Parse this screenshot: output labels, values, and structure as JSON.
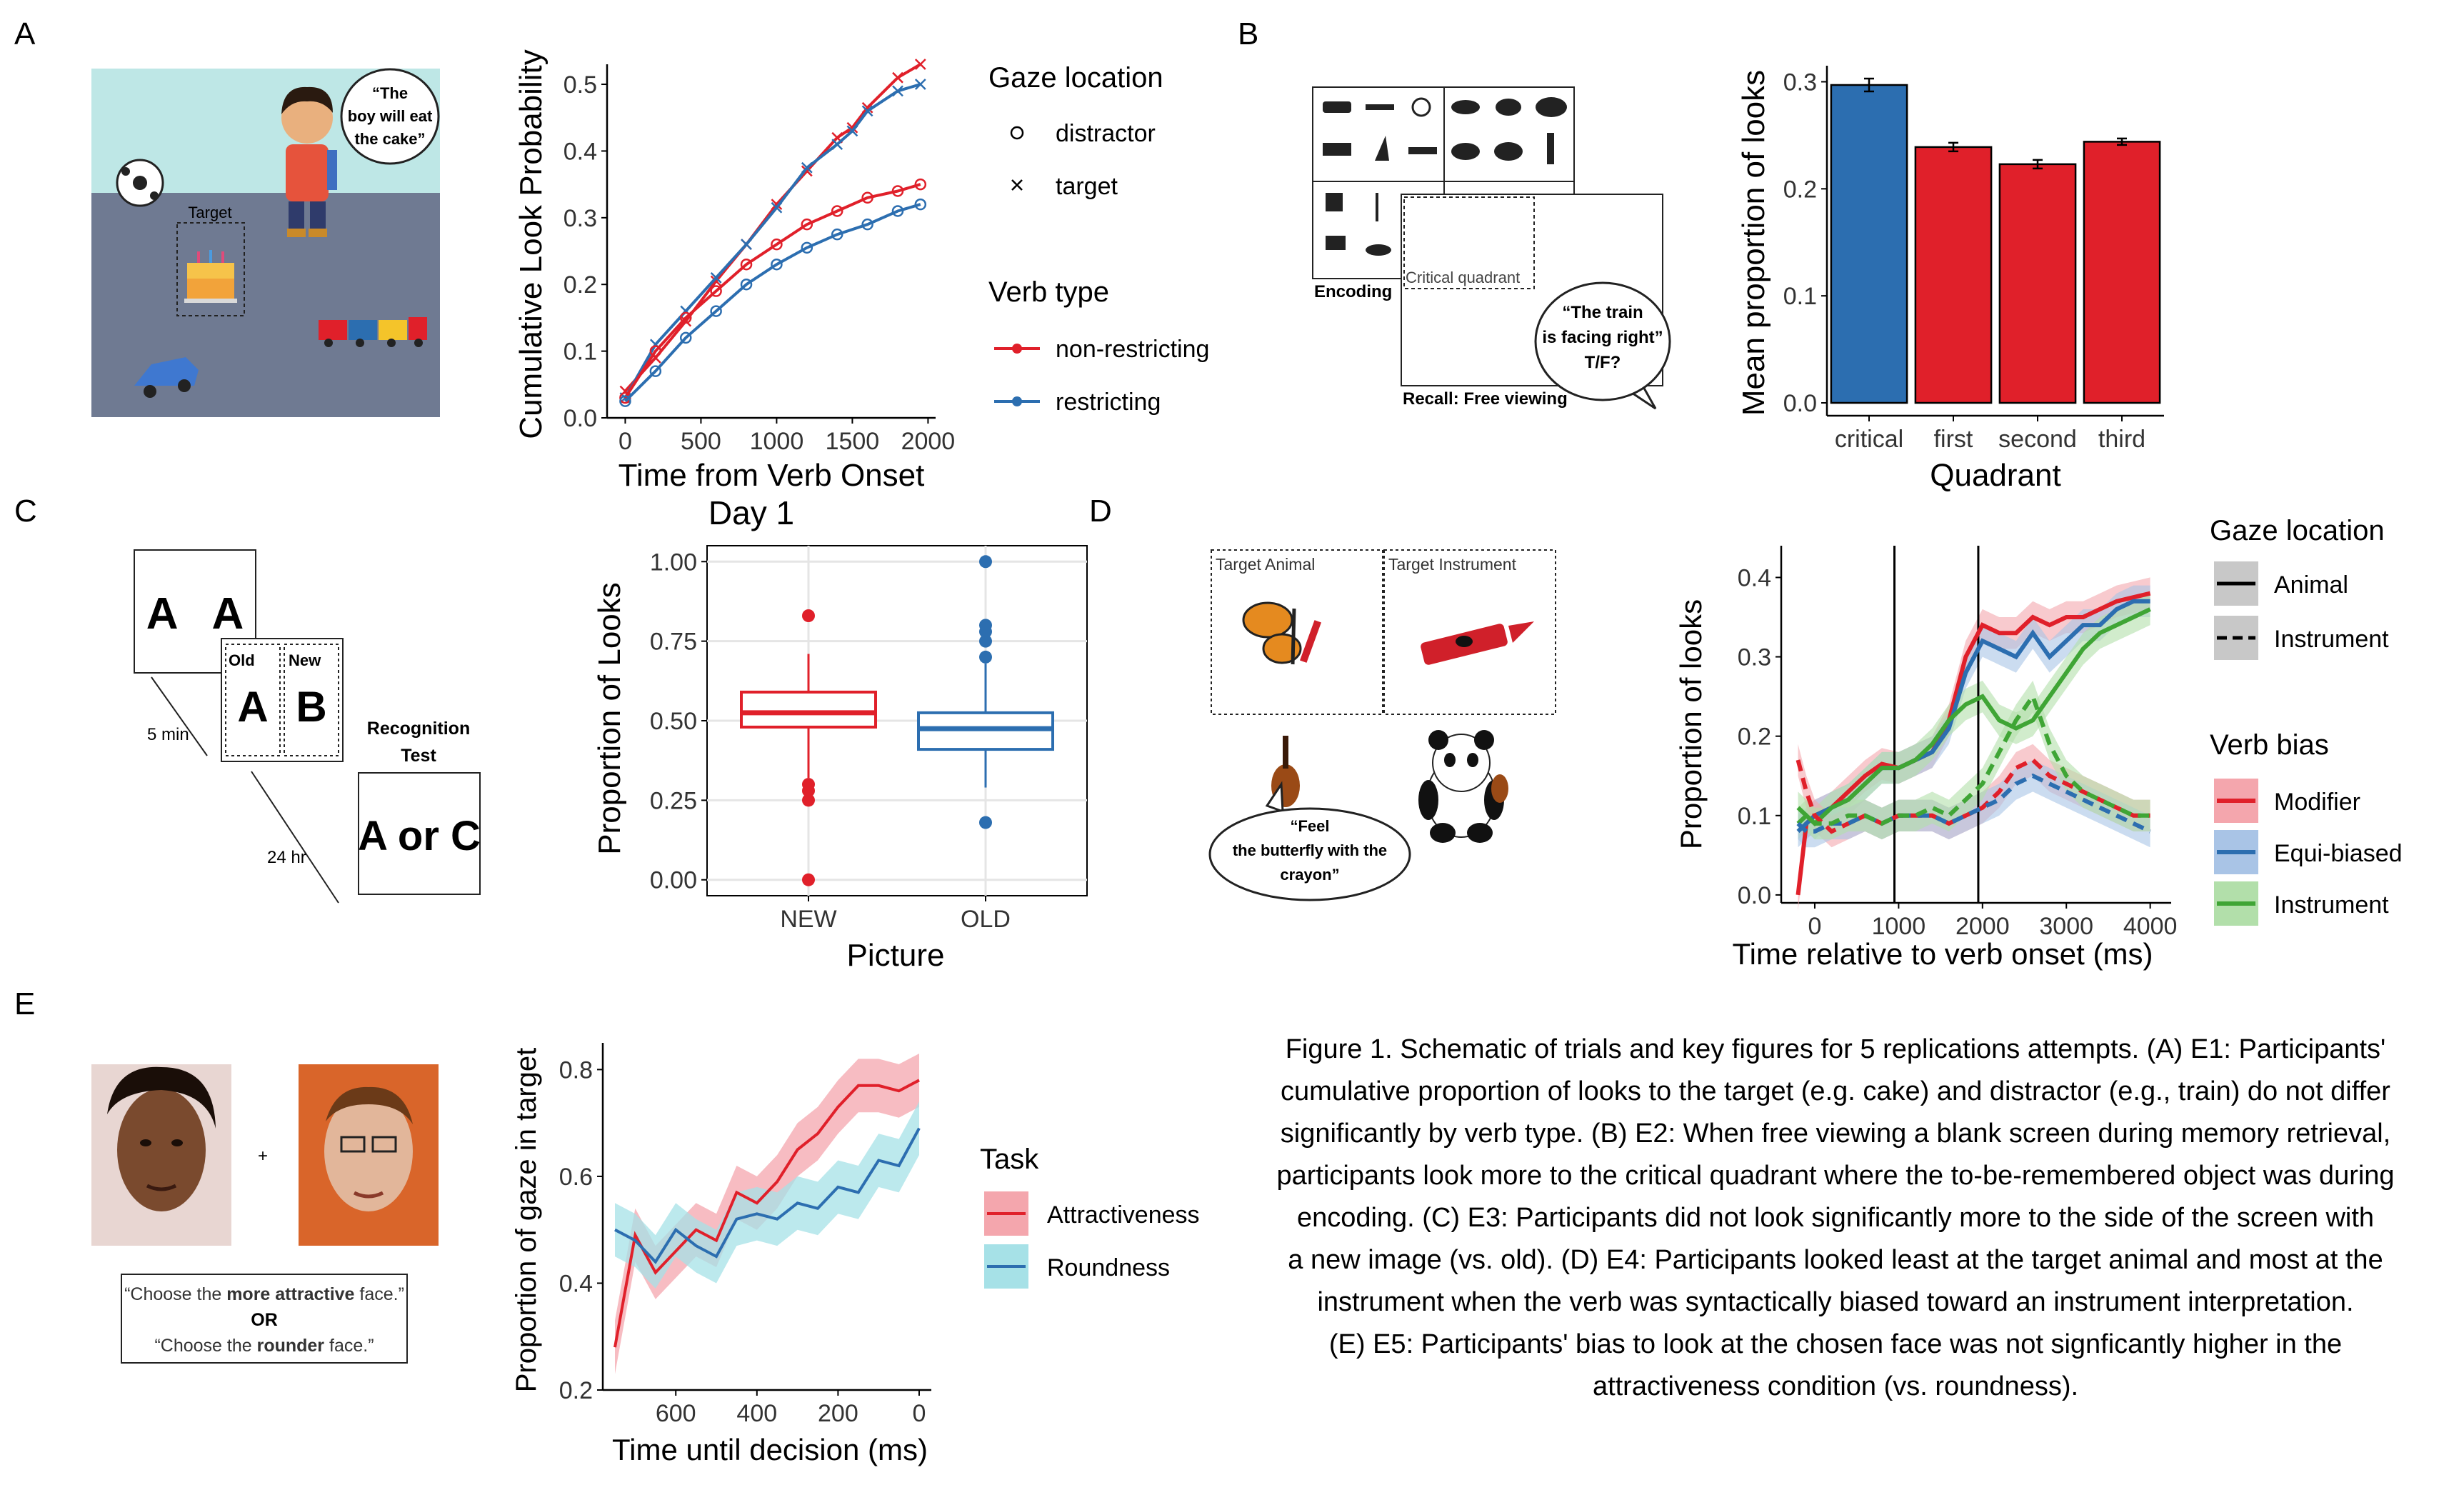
{
  "panel_letters": [
    "A",
    "B",
    "C",
    "D",
    "E"
  ],
  "colors": {
    "red": "#E0202A",
    "blue": "#2C6EB0",
    "green": "#3FA535",
    "red_fill": "#F4A6AD",
    "blue_fill": "#A9C4E6",
    "green_fill": "#B2DFAA",
    "cyan_fill": "#A6E1E7"
  },
  "schematic_A": {
    "speech": [
      "“The",
      "boy will eat",
      "the cake”"
    ],
    "target_label": "Target"
  },
  "schematic_B": {
    "encoding_label": "Encoding",
    "critical_label": "Critical quadrant",
    "recall_label": "Recall: Free viewing",
    "speech": [
      "“The train",
      "is facing right”",
      "T/F?"
    ]
  },
  "schematic_C": {
    "card1": "A   A",
    "old_label": "Old",
    "new_label": "New",
    "old_letter": "A",
    "new_letter": "B",
    "delay1": "5 min",
    "delay2": "24 hr",
    "test_title": [
      "Recognition",
      "Test"
    ],
    "test_text": "A or C"
  },
  "schematic_D": {
    "target_animal": "Target Animal",
    "target_instrument": "Target Instrument",
    "speech": [
      "“Feel",
      "the butterfly with the",
      "crayon”"
    ]
  },
  "schematic_E": {
    "plus": "+",
    "prompt_1a": "“Choose the ",
    "prompt_1b": "more attractive",
    "prompt_1c": " face.”",
    "prompt_or": "OR",
    "prompt_2a": "“Choose the ",
    "prompt_2b": "rounder",
    "prompt_2c": " face.”"
  },
  "chart_data": [
    {
      "id": "A",
      "type": "line",
      "xlabel": "Time from Verb Onset",
      "ylabel": "Cumulative Look Probability",
      "xlim": [
        -120,
        2050
      ],
      "ylim": [
        0,
        0.53
      ],
      "xticks": [
        0,
        500,
        1000,
        1500,
        2000
      ],
      "yticks": [
        0,
        0.1,
        0.2,
        0.3,
        0.4,
        0.5
      ],
      "ytick_labels": [
        "0.0",
        "0.1",
        "0.2",
        "0.3",
        "0.4",
        "0.5"
      ],
      "legend": {
        "title1": "Gaze location",
        "shape_items": [
          "distractor",
          "target"
        ],
        "title2": "Verb type",
        "color_items": [
          "non-restricting",
          "restricting"
        ]
      },
      "series": [
        {
          "name": "non-restricting",
          "gaze": "target",
          "color": "red",
          "x": [
            0,
            200,
            400,
            600,
            800,
            1000,
            1200,
            1400,
            1500,
            1600,
            1800,
            1950
          ],
          "y": [
            0.04,
            0.09,
            0.145,
            0.205,
            0.26,
            0.32,
            0.37,
            0.42,
            0.435,
            0.465,
            0.51,
            0.53
          ]
        },
        {
          "name": "restricting",
          "gaze": "target",
          "color": "blue",
          "x": [
            0,
            200,
            400,
            600,
            800,
            1000,
            1200,
            1400,
            1500,
            1600,
            1800,
            1950
          ],
          "y": [
            0.03,
            0.11,
            0.16,
            0.21,
            0.26,
            0.315,
            0.375,
            0.41,
            0.43,
            0.46,
            0.49,
            0.5
          ]
        },
        {
          "name": "non-restricting",
          "gaze": "distractor",
          "color": "red",
          "x": [
            0,
            200,
            400,
            600,
            800,
            1000,
            1200,
            1400,
            1600,
            1800,
            1950
          ],
          "y": [
            0.03,
            0.1,
            0.15,
            0.19,
            0.23,
            0.26,
            0.29,
            0.31,
            0.33,
            0.34,
            0.35
          ]
        },
        {
          "name": "restricting",
          "gaze": "distractor",
          "color": "blue",
          "x": [
            0,
            200,
            400,
            600,
            800,
            1000,
            1200,
            1400,
            1600,
            1800,
            1950
          ],
          "y": [
            0.025,
            0.07,
            0.12,
            0.16,
            0.2,
            0.23,
            0.255,
            0.275,
            0.29,
            0.31,
            0.32
          ]
        }
      ]
    },
    {
      "id": "B",
      "type": "bar",
      "xlabel": "Quadrant",
      "ylabel": "Mean proportion of looks",
      "categories": [
        "critical",
        "first",
        "second",
        "third"
      ],
      "values": [
        0.297,
        0.239,
        0.223,
        0.244
      ],
      "errors": [
        0.006,
        0.004,
        0.004,
        0.003
      ],
      "bar_colors": [
        "blue",
        "red",
        "red",
        "red"
      ],
      "ylim": [
        -0.012,
        0.315
      ],
      "yticks": [
        0,
        0.1,
        0.2,
        0.3
      ],
      "ytick_labels": [
        "0.0",
        "0.1",
        "0.2",
        "0.3"
      ]
    },
    {
      "id": "C",
      "type": "box",
      "title": "Day 1",
      "xlabel": "Picture",
      "ylabel": "Proportion of Looks",
      "categories": [
        "NEW",
        "OLD"
      ],
      "box_colors": [
        "red",
        "blue"
      ],
      "ylim": [
        -0.05,
        1.05
      ],
      "yticks": [
        0,
        0.25,
        0.5,
        0.75,
        1
      ],
      "ytick_labels": [
        "0.00",
        "0.25",
        "0.50",
        "0.75",
        "1.00"
      ],
      "boxes": [
        {
          "q1": 0.48,
          "median": 0.525,
          "q3": 0.59,
          "whisker_low": 0.32,
          "whisker_high": 0.71,
          "outliers": [
            0.83,
            0.3,
            0.28,
            0.25,
            0.0
          ]
        },
        {
          "q1": 0.41,
          "median": 0.475,
          "q3": 0.525,
          "whisker_low": 0.29,
          "whisker_high": 0.68,
          "outliers": [
            1.0,
            0.8,
            0.78,
            0.75,
            0.7,
            0.18
          ]
        }
      ]
    },
    {
      "id": "D",
      "type": "line",
      "xlabel": "Time relative to verb onset (ms)",
      "ylabel": "Proportion of looks",
      "xlim": [
        -400,
        4250
      ],
      "ylim": [
        -0.01,
        0.44
      ],
      "xticks": [
        0,
        1000,
        2000,
        3000,
        4000
      ],
      "yticks": [
        0,
        0.1,
        0.2,
        0.3,
        0.4
      ],
      "ytick_labels": [
        "0.0",
        "0.1",
        "0.2",
        "0.3",
        "0.4"
      ],
      "vlines": [
        950,
        1950
      ],
      "legend": {
        "title1": "Gaze location",
        "linetype_items": [
          "Animal",
          "Instrument"
        ],
        "title2": "Verb bias",
        "color_items": [
          "Modifier",
          "Equi-biased",
          "Instrument"
        ]
      },
      "series": [
        {
          "name": "Modifier",
          "gaze": "Animal",
          "color": "red",
          "x": [
            -200,
            -100,
            0,
            200,
            400,
            600,
            800,
            1000,
            1200,
            1400,
            1600,
            1800,
            2000,
            2200,
            2400,
            2600,
            2800,
            3000,
            3200,
            3400,
            3600,
            3800,
            4000
          ],
          "y": [
            0.0,
            0.09,
            0.1,
            0.11,
            0.13,
            0.15,
            0.165,
            0.16,
            0.17,
            0.18,
            0.22,
            0.3,
            0.34,
            0.33,
            0.33,
            0.35,
            0.34,
            0.35,
            0.35,
            0.36,
            0.37,
            0.375,
            0.38
          ]
        },
        {
          "name": "Equi-biased",
          "gaze": "Animal",
          "color": "blue",
          "x": [
            -200,
            -100,
            0,
            200,
            400,
            600,
            800,
            1000,
            1200,
            1400,
            1600,
            1800,
            2000,
            2200,
            2400,
            2600,
            2800,
            3000,
            3200,
            3400,
            3600,
            3800,
            4000
          ],
          "y": [
            0.08,
            0.09,
            0.1,
            0.11,
            0.12,
            0.14,
            0.16,
            0.16,
            0.17,
            0.18,
            0.21,
            0.28,
            0.32,
            0.31,
            0.3,
            0.33,
            0.3,
            0.32,
            0.34,
            0.34,
            0.36,
            0.37,
            0.37
          ]
        },
        {
          "name": "Instrument",
          "gaze": "Animal",
          "color": "green",
          "x": [
            -200,
            -100,
            0,
            200,
            400,
            600,
            800,
            1000,
            1200,
            1400,
            1600,
            1800,
            2000,
            2200,
            2400,
            2600,
            2800,
            3000,
            3200,
            3400,
            3600,
            3800,
            4000
          ],
          "y": [
            0.09,
            0.1,
            0.09,
            0.11,
            0.12,
            0.14,
            0.16,
            0.16,
            0.17,
            0.19,
            0.22,
            0.24,
            0.25,
            0.22,
            0.21,
            0.22,
            0.25,
            0.28,
            0.31,
            0.33,
            0.34,
            0.35,
            0.36
          ]
        },
        {
          "name": "Modifier",
          "gaze": "Instrument",
          "color": "red",
          "x": [
            -200,
            -100,
            0,
            200,
            400,
            600,
            800,
            1000,
            1200,
            1400,
            1600,
            1800,
            2000,
            2200,
            2400,
            2600,
            2800,
            3000,
            3200,
            3400,
            3600,
            3800,
            4000
          ],
          "y": [
            0.17,
            0.13,
            0.1,
            0.08,
            0.09,
            0.1,
            0.09,
            0.1,
            0.1,
            0.1,
            0.09,
            0.1,
            0.11,
            0.13,
            0.16,
            0.17,
            0.15,
            0.14,
            0.13,
            0.12,
            0.11,
            0.1,
            0.1
          ]
        },
        {
          "name": "Equi-biased",
          "gaze": "Instrument",
          "color": "blue",
          "x": [
            -200,
            -100,
            0,
            200,
            400,
            600,
            800,
            1000,
            1200,
            1400,
            1600,
            1800,
            2000,
            2200,
            2400,
            2600,
            2800,
            3000,
            3200,
            3400,
            3600,
            3800,
            4000
          ],
          "y": [
            0.09,
            0.08,
            0.08,
            0.09,
            0.09,
            0.1,
            0.09,
            0.1,
            0.1,
            0.1,
            0.09,
            0.1,
            0.11,
            0.12,
            0.14,
            0.15,
            0.14,
            0.13,
            0.12,
            0.11,
            0.1,
            0.09,
            0.08
          ]
        },
        {
          "name": "Instrument",
          "gaze": "Instrument",
          "color": "green",
          "x": [
            -200,
            -100,
            0,
            200,
            400,
            600,
            800,
            1000,
            1200,
            1400,
            1600,
            1800,
            2000,
            2200,
            2400,
            2600,
            2800,
            3000,
            3200,
            3400,
            3600,
            3800,
            4000
          ],
          "y": [
            0.11,
            0.1,
            0.09,
            0.09,
            0.1,
            0.1,
            0.09,
            0.1,
            0.1,
            0.11,
            0.1,
            0.12,
            0.14,
            0.18,
            0.22,
            0.25,
            0.19,
            0.15,
            0.13,
            0.12,
            0.11,
            0.1,
            0.1
          ]
        }
      ]
    },
    {
      "id": "E",
      "type": "line",
      "xlabel": "Time until decision (ms)",
      "ylabel": "Proportion of gaze in target",
      "xreversed": true,
      "xlim": [
        780,
        -30
      ],
      "ylim": [
        0.2,
        0.85
      ],
      "xticks": [
        600,
        400,
        200,
        0
      ],
      "yticks": [
        0.2,
        0.4,
        0.6,
        0.8
      ],
      "ytick_labels": [
        "0.2",
        "0.4",
        "0.6",
        "0.8"
      ],
      "legend": {
        "title": "Task",
        "items": [
          "Attractiveness",
          "Roundness"
        ]
      },
      "series": [
        {
          "name": "Attractiveness",
          "color": "red",
          "x": [
            750,
            700,
            650,
            600,
            550,
            500,
            450,
            400,
            350,
            300,
            250,
            200,
            150,
            100,
            50,
            0
          ],
          "y": [
            0.28,
            0.49,
            0.42,
            0.46,
            0.5,
            0.48,
            0.57,
            0.55,
            0.59,
            0.65,
            0.68,
            0.73,
            0.77,
            0.77,
            0.76,
            0.78
          ]
        },
        {
          "name": "Roundness",
          "color": "blue",
          "x": [
            750,
            700,
            650,
            600,
            550,
            500,
            450,
            400,
            350,
            300,
            250,
            200,
            150,
            100,
            50,
            0
          ],
          "y": [
            0.5,
            0.48,
            0.44,
            0.5,
            0.47,
            0.45,
            0.52,
            0.53,
            0.52,
            0.55,
            0.54,
            0.58,
            0.57,
            0.63,
            0.62,
            0.69
          ]
        }
      ]
    }
  ],
  "caption": [
    "Figure 1. Schematic of trials and key figures for 5 replications attempts. (A) E1: Participants'",
    "cumulative proportion of looks to the target (e.g. cake) and distractor (e.g., train) do not differ",
    "significantly by verb type. (B) E2: When free viewing a blank screen during memory retrieval,",
    "participants look more to the critical quadrant where the to-be-remembered object was during",
    "encoding. (C) E3: Participants did not look significantly more to the side of the screen with",
    "a new image (vs. old). (D) E4: Participants looked least at the target animal and most at the",
    "instrument when the verb was syntactically biased toward an instrument interpretation.",
    "(E) E5: Participants' bias to look at the chosen face was not signficantly higher in the",
    "attractiveness condition (vs. roundness)."
  ]
}
